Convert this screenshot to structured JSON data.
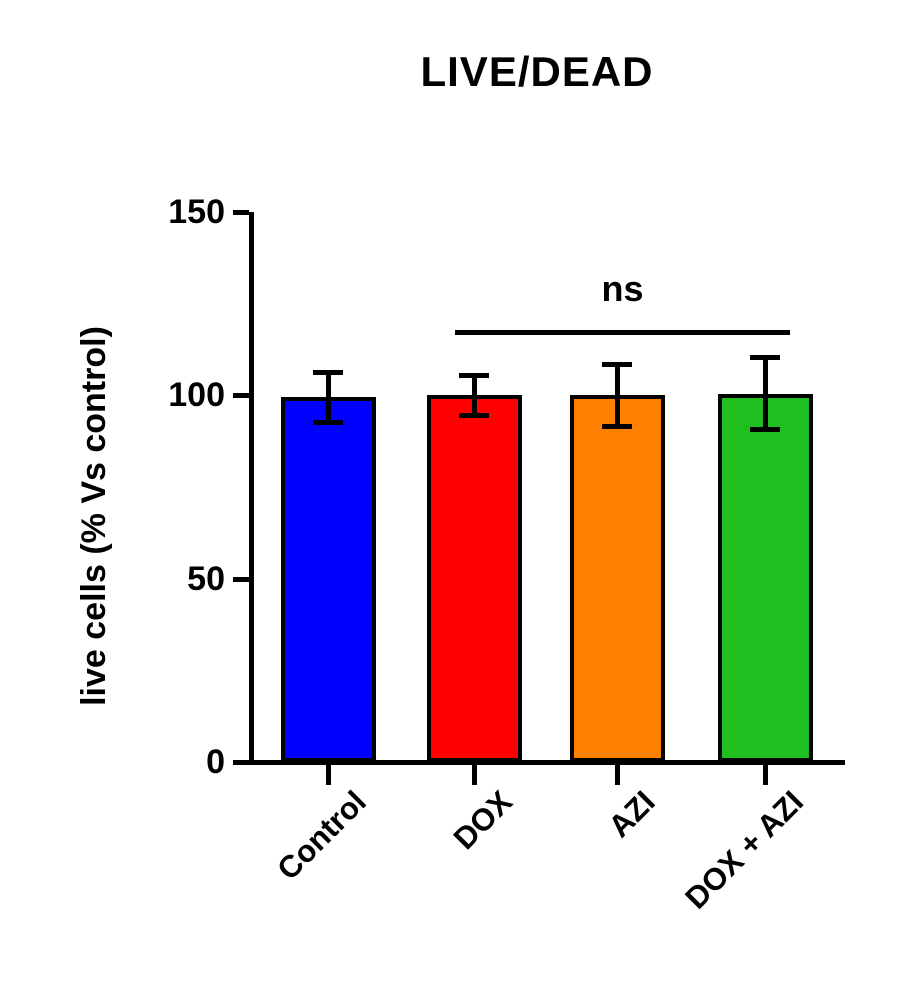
{
  "chart_data": {
    "type": "bar",
    "title": "LIVE/DEAD",
    "ylabel": "live cells (% Vs control)",
    "xlabel": "",
    "categories": [
      "Control",
      "DOX",
      "AZI",
      "DOX + AZI"
    ],
    "values": [
      99.5,
      100,
      100,
      100.5
    ],
    "errors": [
      7,
      5.5,
      8.5,
      10
    ],
    "bar_colors": [
      "#0000ff",
      "#ff0000",
      "#ff8000",
      "#1fbf1f"
    ],
    "ylim": [
      0,
      150
    ],
    "yticks": [
      0,
      50,
      100,
      150
    ],
    "grid": "off",
    "legend": "none",
    "annotation": {
      "text": "ns",
      "span_categories": [
        "DOX",
        "DOX + AZI"
      ]
    },
    "axis_color": "#000000",
    "background_color": "#ffffff"
  }
}
